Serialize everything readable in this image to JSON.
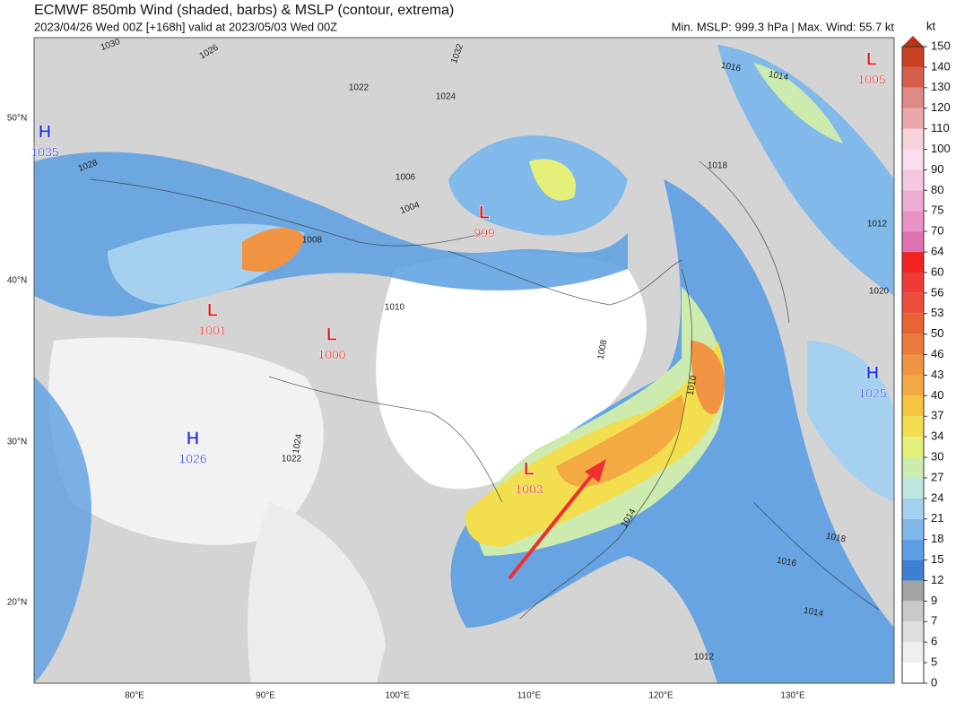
{
  "header": {
    "title": "ECMWF 850mb Wind (shaded, barbs) & MSLP (contour, extrema)",
    "subtitle": "2023/04/26 Wed 00Z [+168h] valid at 2023/05/03 Wed 00Z",
    "summary": "Min. MSLP: 999.3 hPa | Max. Wind: 55.7 kt"
  },
  "colorbar": {
    "unit": "kt",
    "levels": [
      0,
      5,
      6,
      7,
      9,
      12,
      15,
      18,
      21,
      24,
      27,
      30,
      34,
      37,
      40,
      43,
      46,
      50,
      53,
      56,
      60,
      64,
      70,
      75,
      80,
      90,
      100,
      110,
      120,
      130,
      140,
      150
    ],
    "colors": [
      "#ffffff",
      "#efefef",
      "#dedede",
      "#c9c9c9",
      "#a3a3a3",
      "#3b80d2",
      "#5b9fe2",
      "#80b9ea",
      "#a6d0ef",
      "#bfe5df",
      "#cdebae",
      "#e5f07a",
      "#f3de4f",
      "#f7c442",
      "#f4aa42",
      "#f09343",
      "#ec7a3a",
      "#ea6333",
      "#ec4e3c",
      "#f03a38",
      "#f02222",
      "#e072b2",
      "#e892c6",
      "#eeacd4",
      "#f4c6e0",
      "#f8deee",
      "#f6d2dc",
      "#eaa8ac",
      "#de8a88",
      "#d4604c",
      "#c84020"
    ],
    "extend_color": "#b63418"
  },
  "axes": {
    "lon_labels": [
      "80°E",
      "90°E",
      "100°E",
      "110°E",
      "120°E",
      "130°E"
    ],
    "lat_labels": [
      "50°N",
      "40°N",
      "30°N",
      "20°N"
    ]
  },
  "centers": [
    {
      "letter": "H",
      "value": 1035,
      "color": "#1a2ee0"
    },
    {
      "letter": "L",
      "value": 999,
      "color": "#e01010"
    },
    {
      "letter": "L",
      "value": 1001,
      "color": "#e01010"
    },
    {
      "letter": "L",
      "value": 1000,
      "color": "#e01010"
    },
    {
      "letter": "H",
      "value": 1026,
      "color": "#1a2ee0"
    },
    {
      "letter": "L",
      "value": 1003,
      "color": "#e01010"
    },
    {
      "letter": "H",
      "value": 1025,
      "color": "#1a2ee0"
    },
    {
      "letter": "L",
      "value": 1005,
      "color": "#e01010"
    }
  ],
  "isobar_labels": [
    "1030",
    "1026",
    "1022",
    "1024",
    "1032",
    "1028",
    "1016",
    "1014",
    "1018",
    "1006",
    "1004",
    "1008",
    "1010",
    "1012",
    "1020",
    "1010",
    "1008",
    "1014",
    "1016",
    "1018",
    "1014",
    "1012",
    "1022",
    "1024"
  ]
}
